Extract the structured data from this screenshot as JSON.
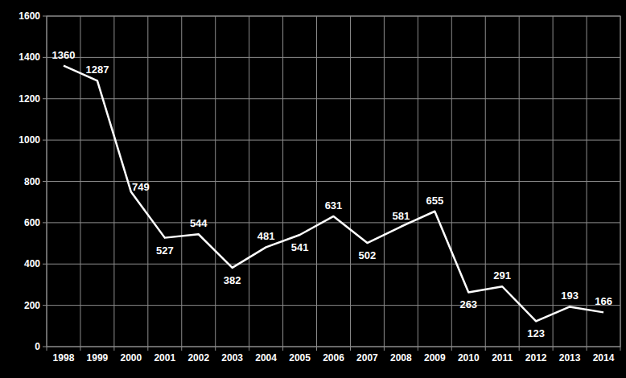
{
  "chart_data": {
    "type": "line",
    "categories": [
      "1998",
      "1999",
      "2000",
      "2001",
      "2002",
      "2003",
      "2004",
      "2005",
      "2006",
      "2007",
      "2008",
      "2009",
      "2010",
      "2011",
      "2012",
      "2013",
      "2014"
    ],
    "values": [
      1360,
      1287,
      749,
      527,
      544,
      382,
      481,
      541,
      631,
      502,
      581,
      655,
      263,
      291,
      123,
      193,
      166
    ],
    "color": "#ffffff",
    "ylim": [
      0,
      1600
    ],
    "yticks": [
      0,
      200,
      400,
      600,
      800,
      1000,
      1200,
      1400,
      1600
    ],
    "grid": true,
    "data_labels": true
  }
}
